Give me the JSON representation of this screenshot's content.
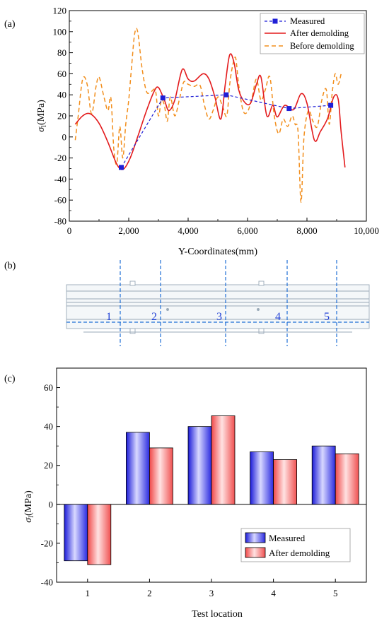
{
  "panels": {
    "a_label": "(a)",
    "b_label": "(b)",
    "c_label": "(c)"
  },
  "chart_data": [
    {
      "type": "line",
      "panel": "(a)",
      "xlabel": "Y-Coordinates(mm)",
      "ylabel_symbol": "σ",
      "ylabel_sub": "l",
      "ylabel_unit": "(MPa)",
      "xlim": [
        0,
        10000
      ],
      "ylim": [
        -80,
        120
      ],
      "xticks": [
        0,
        2000,
        4000,
        6000,
        8000,
        10000
      ],
      "xtick_labels": [
        "0",
        "2,000",
        "4,000",
        "6,000",
        "8,000",
        "10,000"
      ],
      "yticks": [
        -80,
        -60,
        -40,
        -20,
        0,
        20,
        40,
        60,
        80,
        100,
        120
      ],
      "legend_position": "top-right",
      "series": [
        {
          "name": "Measured",
          "style": "dashed-square",
          "color": "#1f1fd6",
          "x": [
            1750,
            3150,
            5280,
            7400,
            8800
          ],
          "y": [
            -29,
            37,
            40,
            27,
            30
          ]
        },
        {
          "name": "After demolding",
          "style": "solid",
          "color": "#e31a1c",
          "x": [
            200,
            450,
            700,
            1000,
            1300,
            1550,
            1700,
            1850,
            2050,
            2300,
            2600,
            2850,
            3000,
            3200,
            3350,
            3550,
            3800,
            4000,
            4200,
            4500,
            4700,
            4900,
            5100,
            5250,
            5400,
            5550,
            5700,
            5900,
            6100,
            6300,
            6450,
            6650,
            6850,
            7000,
            7250,
            7550,
            7800,
            8000,
            8250,
            8450,
            8700,
            8900,
            9050,
            9150,
            9280
          ],
          "y": [
            12,
            20,
            22,
            13,
            -5,
            -23,
            -30,
            -30,
            -20,
            0,
            25,
            43,
            47,
            35,
            25,
            35,
            64,
            55,
            53,
            60,
            55,
            38,
            17,
            50,
            78,
            70,
            45,
            33,
            32,
            50,
            57,
            20,
            30,
            19,
            30,
            26,
            41,
            32,
            -3,
            5,
            18,
            38,
            36,
            5,
            -29
          ]
        },
        {
          "name": "Before demolding",
          "style": "dashed",
          "color": "#f28e1c",
          "x": [
            200,
            300,
            450,
            600,
            750,
            900,
            1000,
            1150,
            1300,
            1400,
            1500,
            1600,
            1700,
            1800,
            1900,
            2000,
            2100,
            2200,
            2300,
            2450,
            2600,
            2750,
            2900,
            3000,
            3100,
            3200,
            3300,
            3400,
            3550,
            3700,
            3850,
            4000,
            4200,
            4400,
            4550,
            4700,
            4850,
            5000,
            5150,
            5300,
            5400,
            5500,
            5600,
            5700,
            5850,
            6000,
            6150,
            6300,
            6450,
            6600,
            6750,
            6900,
            7050,
            7200,
            7350,
            7500,
            7600,
            7700,
            7800,
            7900,
            8050,
            8200,
            8350,
            8500,
            8650,
            8750,
            8850,
            8950,
            9050,
            9150
          ],
          "y": [
            -3,
            20,
            55,
            50,
            22,
            48,
            57,
            40,
            25,
            37,
            -12,
            -25,
            10,
            -20,
            12,
            35,
            68,
            98,
            100,
            65,
            43,
            43,
            44,
            20,
            35,
            30,
            15,
            38,
            20,
            35,
            52,
            50,
            48,
            49,
            30,
            17,
            26,
            38,
            30,
            20,
            50,
            68,
            75,
            50,
            25,
            24,
            37,
            55,
            35,
            45,
            57,
            20,
            3,
            17,
            10,
            20,
            12,
            5,
            -62,
            0,
            25,
            15,
            10,
            35,
            45,
            12,
            42,
            60,
            50,
            60
          ]
        }
      ]
    },
    {
      "type": "diagram",
      "panel": "(b)",
      "section_labels": [
        "1",
        "2",
        "3",
        "4",
        "5"
      ]
    },
    {
      "type": "bar",
      "panel": "(c)",
      "xlabel": "Test location",
      "ylabel_symbol": "σ",
      "ylabel_sub": "l",
      "ylabel_unit": "(MPa)",
      "categories": [
        "1",
        "2",
        "3",
        "4",
        "5"
      ],
      "ylim": [
        -40,
        70
      ],
      "yticks": [
        -40,
        -20,
        0,
        20,
        40,
        60
      ],
      "legend_position": "bottom-right",
      "series": [
        {
          "name": "Measured",
          "color": "#3a3af0",
          "values": [
            -29,
            37,
            40,
            27,
            30
          ]
        },
        {
          "name": "After demolding",
          "color": "#f56a6a",
          "values": [
            -31,
            29,
            45.5,
            23,
            26
          ]
        }
      ]
    }
  ]
}
